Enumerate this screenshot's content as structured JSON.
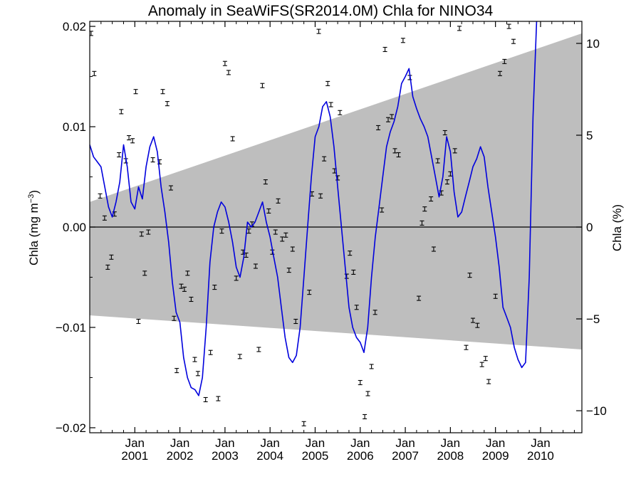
{
  "chart_data": {
    "type": "line",
    "title": "Anomaly in SeaWiFS(SR2014.0M) Chla for NINO34",
    "ylabel": "Chla (mg m⁻³)",
    "ylabel_parts": {
      "base": "Chla (mg m",
      "exp": "−3",
      "close": ")"
    },
    "y2label": "Chla (%)",
    "xlim": [
      2000.0,
      2010.917
    ],
    "ylim": [
      -0.0205,
      0.0205
    ],
    "y2lim": [
      -11.2,
      11.2
    ],
    "yticks": [
      -0.02,
      -0.01,
      0.0,
      0.01,
      0.02
    ],
    "ytick_labels": [
      "−0.02",
      "−0.01",
      "0.00",
      "0.01",
      "0.02"
    ],
    "y2ticks": [
      -10,
      -5,
      0,
      5,
      10
    ],
    "y2tick_labels": [
      "−10",
      "−5",
      "0",
      "5",
      "10"
    ],
    "xticks": [
      2001,
      2002,
      2003,
      2004,
      2005,
      2006,
      2007,
      2008,
      2009,
      2010
    ],
    "xtick_month_label": "Jan",
    "xtick_year_labels": [
      "2001",
      "2002",
      "2003",
      "2004",
      "2005",
      "2006",
      "2007",
      "2008",
      "2009",
      "2010"
    ],
    "grid": false,
    "zero_line": true,
    "band": {
      "color": "#bebebe",
      "start": [
        2000.0,
        0.0025,
        -0.0088
      ],
      "end": [
        2010.917,
        0.0193,
        -0.0122
      ]
    },
    "line_color": "#0000dd",
    "series": [
      {
        "x": [
          2000.0,
          2000.083,
          2000.167,
          2000.25,
          2000.333,
          2000.417,
          2000.5,
          2000.583,
          2000.667,
          2000.75,
          2000.833,
          2000.917,
          2001.0,
          2001.083,
          2001.167,
          2001.25,
          2001.333,
          2001.417,
          2001.5,
          2001.583,
          2001.667,
          2001.75,
          2001.833,
          2001.917,
          2002.0,
          2002.083,
          2002.167,
          2002.25,
          2002.333,
          2002.417,
          2002.5,
          2002.583,
          2002.667,
          2002.75,
          2002.833,
          2002.917,
          2003.0,
          2003.083,
          2003.167,
          2003.25,
          2003.333,
          2003.417,
          2003.5,
          2003.583,
          2003.667,
          2003.75,
          2003.833,
          2003.917,
          2004.0,
          2004.083,
          2004.167,
          2004.25,
          2004.333,
          2004.417,
          2004.5,
          2004.583,
          2004.667,
          2004.75,
          2004.833,
          2004.917,
          2005.0,
          2005.083,
          2005.167,
          2005.25,
          2005.333,
          2005.417,
          2005.5,
          2005.583,
          2005.667,
          2005.75,
          2005.833,
          2005.917,
          2006.0,
          2006.083,
          2006.167,
          2006.25,
          2006.333,
          2006.417,
          2006.5,
          2006.583,
          2006.667,
          2006.75,
          2006.833,
          2006.917,
          2007.0,
          2007.083,
          2007.167,
          2007.25,
          2007.333,
          2007.417,
          2007.5,
          2007.583,
          2007.667,
          2007.75,
          2007.833,
          2007.917,
          2008.0,
          2008.083,
          2008.167,
          2008.25,
          2008.333,
          2008.417,
          2008.5,
          2008.583,
          2008.667,
          2008.75,
          2008.833,
          2008.917,
          2009.0,
          2009.083,
          2009.167,
          2009.25,
          2009.333,
          2009.417,
          2009.5,
          2009.583,
          2009.667,
          2009.75,
          2009.833,
          2009.917,
          2010.0,
          2010.083,
          2010.167,
          2010.25,
          2010.333,
          2010.417,
          2010.5,
          2010.583,
          2010.667,
          2010.75,
          2010.833,
          2010.917
        ],
        "y": [
          0.0082,
          0.007,
          0.0065,
          0.006,
          0.004,
          0.002,
          0.001,
          0.0025,
          0.0045,
          0.0082,
          0.006,
          0.0025,
          0.0018,
          0.004,
          0.0028,
          0.006,
          0.008,
          0.009,
          0.0075,
          0.004,
          0.0015,
          -0.0015,
          -0.0055,
          -0.0085,
          -0.0095,
          -0.013,
          -0.015,
          -0.016,
          -0.0162,
          -0.0168,
          -0.015,
          -0.01,
          -0.0035,
          0.0,
          0.0015,
          0.0025,
          0.002,
          0.0005,
          -0.0015,
          -0.004,
          -0.005,
          -0.003,
          0.0005,
          0.0,
          0.0005,
          0.0015,
          0.0025,
          0.0005,
          -0.001,
          -0.003,
          -0.005,
          -0.008,
          -0.011,
          -0.013,
          -0.0135,
          -0.0128,
          -0.01,
          -0.005,
          0.0,
          0.005,
          0.009,
          0.01,
          0.012,
          0.0125,
          0.011,
          0.008,
          0.004,
          0.0,
          -0.004,
          -0.008,
          -0.01,
          -0.011,
          -0.0115,
          -0.0125,
          -0.01,
          -0.005,
          -0.001,
          0.002,
          0.005,
          0.008,
          0.0095,
          0.0105,
          0.012,
          0.0143,
          0.015,
          0.0158,
          0.013,
          0.0118,
          0.0108,
          0.01,
          0.009,
          0.007,
          0.005,
          0.003,
          0.005,
          0.009,
          0.0075,
          0.0035,
          0.001,
          0.0015,
          0.003,
          0.0045,
          0.006,
          0.0068,
          0.008,
          0.007,
          0.004,
          0.0015,
          -0.001,
          -0.004,
          -0.008,
          -0.009,
          -0.01,
          -0.012,
          -0.0132,
          -0.014,
          -0.0135,
          -0.005,
          0.011,
          0.021,
          0.025,
          0.021,
          0.022,
          0.023,
          0.024,
          0.025,
          0.026,
          0.027,
          0.028,
          0.029,
          0.03,
          0.031
        ]
      }
    ],
    "points": [
      [
        2000.03,
        0.0193
      ],
      [
        2000.1,
        0.0153
      ],
      [
        2000.23,
        0.0031
      ],
      [
        2000.33,
        0.0009
      ],
      [
        2000.4,
        -0.004
      ],
      [
        2000.48,
        -0.003
      ],
      [
        2000.55,
        0.0013
      ],
      [
        2000.65,
        0.0072
      ],
      [
        2000.7,
        0.0115
      ],
      [
        2000.8,
        0.0066
      ],
      [
        2000.87,
        0.0089
      ],
      [
        2000.95,
        0.0086
      ],
      [
        2001.02,
        0.0135
      ],
      [
        2001.08,
        -0.0094
      ],
      [
        2001.15,
        -0.0007
      ],
      [
        2001.22,
        -0.0046
      ],
      [
        2001.3,
        -0.0005
      ],
      [
        2001.4,
        0.0067
      ],
      [
        2001.55,
        0.0065
      ],
      [
        2001.62,
        0.0135
      ],
      [
        2001.72,
        0.0123
      ],
      [
        2001.8,
        0.0039
      ],
      [
        2001.87,
        -0.0091
      ],
      [
        2001.93,
        -0.0143
      ],
      [
        2002.03,
        -0.0059
      ],
      [
        2002.1,
        -0.0062
      ],
      [
        2002.17,
        -0.0046
      ],
      [
        2002.25,
        -0.0072
      ],
      [
        2002.33,
        -0.0132
      ],
      [
        2002.4,
        -0.0146
      ],
      [
        2002.57,
        -0.0172
      ],
      [
        2002.68,
        -0.0125
      ],
      [
        2002.77,
        -0.006
      ],
      [
        2002.85,
        -0.0171
      ],
      [
        2002.93,
        -0.0004
      ],
      [
        2003.0,
        0.0163
      ],
      [
        2003.08,
        0.0154
      ],
      [
        2003.17,
        0.0088
      ],
      [
        2003.25,
        -0.0051
      ],
      [
        2003.33,
        -0.0129
      ],
      [
        2003.4,
        -0.0025
      ],
      [
        2003.47,
        -0.0028
      ],
      [
        2003.53,
        -0.0004
      ],
      [
        2003.6,
        0.0003
      ],
      [
        2003.68,
        -0.0039
      ],
      [
        2003.75,
        -0.0122
      ],
      [
        2003.83,
        0.0141
      ],
      [
        2003.9,
        0.0045
      ],
      [
        2003.97,
        0.0016
      ],
      [
        2004.05,
        -0.0025
      ],
      [
        2004.12,
        -0.0005
      ],
      [
        2004.18,
        0.0026
      ],
      [
        2004.27,
        -0.0012
      ],
      [
        2004.35,
        -0.0008
      ],
      [
        2004.42,
        -0.0043
      ],
      [
        2004.5,
        -0.0022
      ],
      [
        2004.57,
        -0.0094
      ],
      [
        2004.75,
        -0.0196
      ],
      [
        2004.87,
        -0.0065
      ],
      [
        2004.93,
        0.0033
      ],
      [
        2005.08,
        0.0195
      ],
      [
        2005.12,
        0.0031
      ],
      [
        2005.2,
        0.0068
      ],
      [
        2005.28,
        0.0143
      ],
      [
        2005.35,
        0.0122
      ],
      [
        2005.43,
        0.0056
      ],
      [
        2005.5,
        0.0049
      ],
      [
        2005.55,
        0.0114
      ],
      [
        2005.7,
        -0.0049
      ],
      [
        2005.77,
        -0.0026
      ],
      [
        2005.85,
        -0.0045
      ],
      [
        2005.92,
        -0.008
      ],
      [
        2006.0,
        -0.0155
      ],
      [
        2006.1,
        -0.0189
      ],
      [
        2006.17,
        -0.0166
      ],
      [
        2006.25,
        -0.0139
      ],
      [
        2006.33,
        -0.0085
      ],
      [
        2006.4,
        0.0099
      ],
      [
        2006.48,
        0.0017
      ],
      [
        2006.55,
        0.0177
      ],
      [
        2006.62,
        0.0107
      ],
      [
        2006.7,
        0.011
      ],
      [
        2006.77,
        0.0076
      ],
      [
        2006.85,
        0.0072
      ],
      [
        2006.95,
        0.0186
      ],
      [
        2007.1,
        0.0149
      ],
      [
        2007.3,
        -0.0071
      ],
      [
        2007.37,
        0.0004
      ],
      [
        2007.43,
        0.0018
      ],
      [
        2007.57,
        0.0028
      ],
      [
        2007.63,
        -0.0022
      ],
      [
        2007.72,
        0.0066
      ],
      [
        2007.8,
        0.0034
      ],
      [
        2007.88,
        0.0094
      ],
      [
        2007.93,
        0.0045
      ],
      [
        2008.0,
        0.0053
      ],
      [
        2008.1,
        0.0076
      ],
      [
        2008.2,
        0.0198
      ],
      [
        2008.35,
        -0.012
      ],
      [
        2008.43,
        -0.0048
      ],
      [
        2008.5,
        -0.0093
      ],
      [
        2008.6,
        -0.0098
      ],
      [
        2008.7,
        -0.0137
      ],
      [
        2008.78,
        -0.0131
      ],
      [
        2008.85,
        -0.0154
      ],
      [
        2009.0,
        -0.0069
      ],
      [
        2009.1,
        0.0153
      ],
      [
        2009.2,
        0.0165
      ],
      [
        2009.3,
        0.02
      ],
      [
        2009.4,
        0.0185
      ]
    ]
  }
}
